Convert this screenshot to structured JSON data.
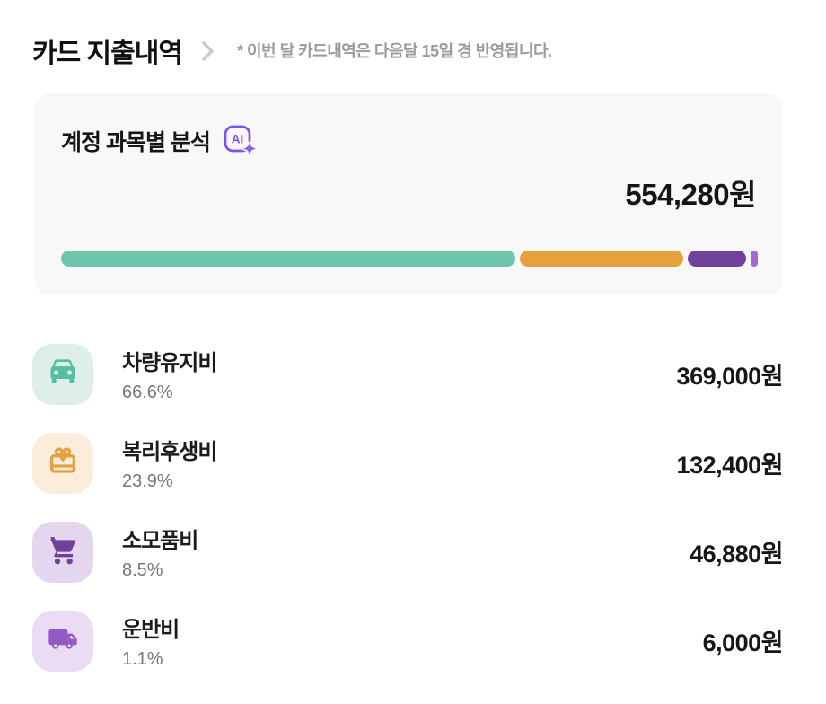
{
  "header": {
    "title": "카드 지출내역",
    "note": "* 이번 달 카드내역은 다음달 15일 경 반영됩니다.",
    "chevron_icon": "chevron-right-icon"
  },
  "summary_card": {
    "title": "계정 과목별 분석",
    "ai_icon": "ai-sparkle-icon",
    "total_label": "554,280원"
  },
  "chart_data": {
    "type": "stacked-bar",
    "title": "계정 과목별 분석",
    "total_value": 554280,
    "total_label": "554,280원",
    "categories": [
      "차량유지비",
      "복리후생비",
      "소모품비",
      "운반비"
    ],
    "values": [
      369000,
      132400,
      46880,
      6000
    ],
    "percents": [
      66.6,
      23.9,
      8.5,
      1.1
    ],
    "colors": [
      "#6ec6ad",
      "#e6a13f",
      "#6f4199",
      "#a268cf"
    ],
    "legend_position": "list-below",
    "grid": false
  },
  "items": [
    {
      "label": "차량유지비",
      "percent": "66.6%",
      "amount": "369,000원",
      "icon": "car-icon",
      "icon_color": "#56bda3",
      "icon_bg": "#ddefe7"
    },
    {
      "label": "복리후생비",
      "percent": "23.9%",
      "amount": "132,400원",
      "icon": "gift-icon",
      "icon_color": "#e2a242",
      "icon_bg": "#faeedb"
    },
    {
      "label": "소모품비",
      "percent": "8.5%",
      "amount": "46,880원",
      "icon": "cart-icon",
      "icon_color": "#6f4199",
      "icon_bg": "#e4d6ee"
    },
    {
      "label": "운반비",
      "percent": "1.1%",
      "amount": "6,000원",
      "icon": "truck-icon",
      "icon_color": "#9459c4",
      "icon_bg": "#e9dcf3"
    }
  ],
  "accent_colors": {
    "ai_purple": "#7a52f0",
    "chevron_gray": "#c9c9c9",
    "card_bg": "#f8f8f8"
  }
}
